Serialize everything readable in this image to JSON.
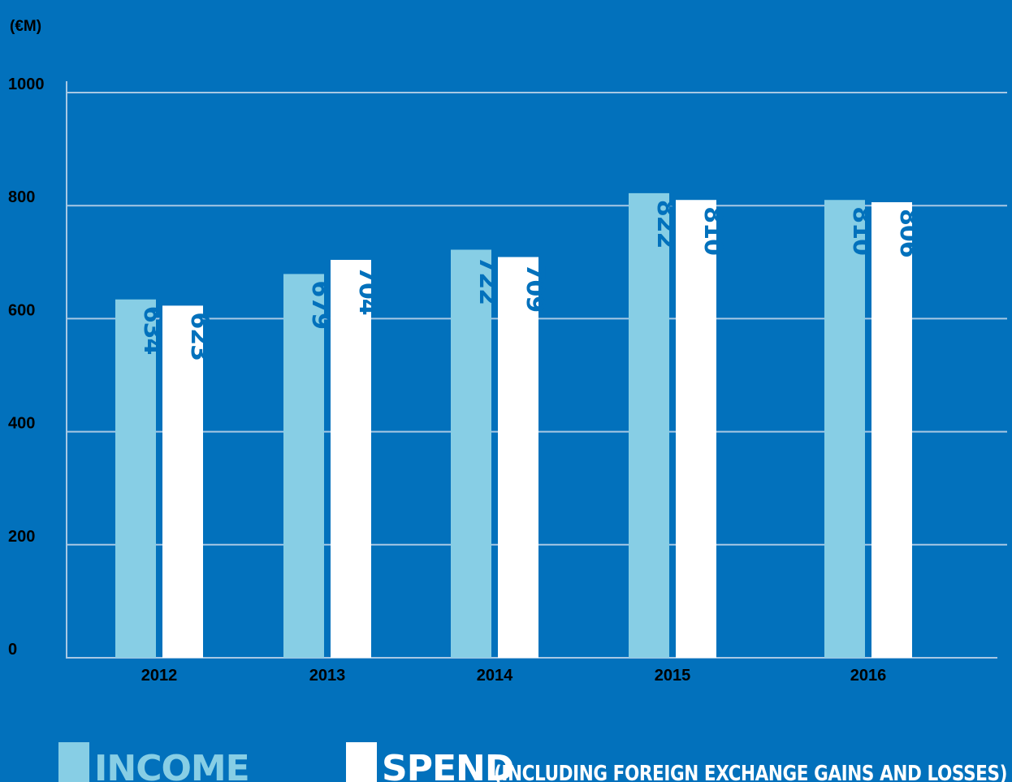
{
  "chart_data": {
    "type": "bar",
    "unit_label": "(€M)",
    "categories": [
      "2012",
      "2013",
      "2014",
      "2015",
      "2016"
    ],
    "series": [
      {
        "name": "INCOME",
        "values": [
          634,
          679,
          722,
          822,
          810
        ],
        "color": "#87cee5",
        "label_color": "#0271bc"
      },
      {
        "name": "SPEND",
        "values": [
          623,
          704,
          709,
          810,
          806
        ],
        "color": "#ffffff",
        "label_color": "#0271bc"
      }
    ],
    "yticks": [
      "0",
      "200",
      "400",
      "600",
      "800",
      "1000"
    ],
    "ylim": [
      0,
      1000
    ],
    "grid": true,
    "grid_color": "#a8c8e4",
    "background": "#0271bc",
    "legend": {
      "placement": "bottom",
      "income_label": "INCOME",
      "spend_label": "SPEND",
      "spend_note": "(INCLUDING FOREIGN EXCHANGE GAINS AND LOSSES)"
    }
  }
}
